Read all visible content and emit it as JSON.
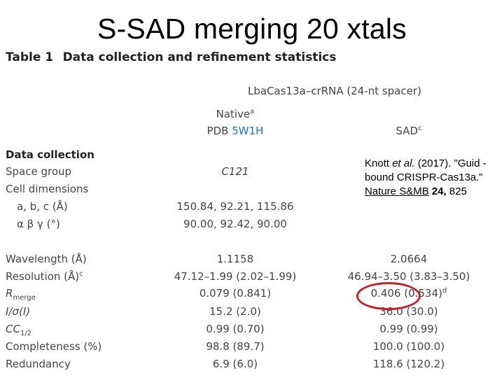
{
  "slide": {
    "title": "S-SAD merging 20 xtals"
  },
  "table": {
    "caption_number": "Table 1",
    "caption_text": "Data collection and refinement statistics",
    "group_header": "LbaCas13a–crRNA (24-nt spacer)",
    "col1_line1": "Native",
    "col1_line1_sup": "a",
    "col1_pdb_prefix": "PDB ",
    "col1_pdb_id": "5W1H",
    "col2_header": "SAD",
    "col2_header_sup": "c",
    "section_data_collection": "Data collection",
    "rows": {
      "space_group": {
        "label": "Space group",
        "native": "C121",
        "sad": ""
      },
      "cell_dimensions": {
        "label": "Cell dimensions"
      },
      "abc": {
        "label": "a, b, c (Å)",
        "native": "150.84, 92.21, 115.86",
        "sad": ""
      },
      "angles": {
        "label": "α β γ (°)",
        "native": "90.00, 92.42, 90.00",
        "sad": ""
      },
      "wavelength": {
        "label": "Wavelength (Å)",
        "native": "1.1158",
        "sad": "2.0664"
      },
      "resolution": {
        "label": "Resolution (Å)",
        "label_sup": "c",
        "native": "47.12–1.99 (2.02–1.99)",
        "sad": "46.94–3.50 (3.83–3.50)"
      },
      "rmerge": {
        "label": "R",
        "label_sub": "merge",
        "native": "0.079 (0.841)",
        "sad": "0.406 (0.534)",
        "sad_sup": "d"
      },
      "i_sigma": {
        "label": "I/σ(I)",
        "native": "15.2 (2.0)",
        "sad": "36.0 (30.0)"
      },
      "cc_half": {
        "label": "CC",
        "label_sub": "1/2",
        "native": "0.99 (0.70)",
        "sad": "0.99 (0.99)"
      },
      "completeness": {
        "label": "Completeness (%)",
        "native": "98.8 (89.7)",
        "sad": "100.0 (100.0)"
      },
      "redundancy": {
        "label": "Redundancy",
        "native": "6.9 (6.0)",
        "sad": "118.6 (120.2)"
      }
    }
  },
  "citation": {
    "authors": "Knott ",
    "et_al": "et al.",
    "year_title": " (2017). \"Guid -bound CRISPR-Cas13a.\" ",
    "journal": "Nature S&MB",
    "space": " ",
    "volume": "24,",
    "pages": " 825"
  },
  "highlight": {
    "color": "#c0202a",
    "target": "rmerge-sad-value"
  }
}
